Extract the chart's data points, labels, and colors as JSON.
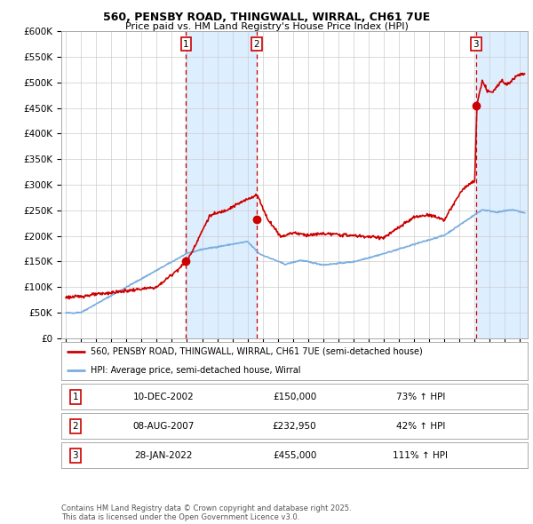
{
  "title1": "560, PENSBY ROAD, THINGWALL, WIRRAL, CH61 7UE",
  "title2": "Price paid vs. HM Land Registry's House Price Index (HPI)",
  "legend_line1": "560, PENSBY ROAD, THINGWALL, WIRRAL, CH61 7UE (semi-detached house)",
  "legend_line2": "HPI: Average price, semi-detached house, Wirral",
  "sale1": {
    "label": "1",
    "date": "10-DEC-2002",
    "date_num": 2002.94,
    "price": 150000,
    "price_str": "£150,000",
    "pct": "73%",
    "dir": "↑"
  },
  "sale2": {
    "label": "2",
    "date": "08-AUG-2007",
    "date_num": 2007.6,
    "price": 232950,
    "price_str": "£232,950",
    "pct": "42%",
    "dir": "↑"
  },
  "sale3": {
    "label": "3",
    "date": "28-JAN-2022",
    "date_num": 2022.08,
    "price": 455000,
    "price_str": "£455,000",
    "pct": "111%",
    "dir": "↑"
  },
  "red_color": "#cc0000",
  "blue_color": "#7aade0",
  "shade_color": "#ddeeff",
  "grid_color": "#cccccc",
  "bg_color": "#ffffff",
  "ylim": [
    0,
    600000
  ],
  "yticks": [
    0,
    50000,
    100000,
    150000,
    200000,
    250000,
    300000,
    350000,
    400000,
    450000,
    500000,
    550000,
    600000
  ],
  "ytick_labels": [
    "£0",
    "£50K",
    "£100K",
    "£150K",
    "£200K",
    "£250K",
    "£300K",
    "£350K",
    "£400K",
    "£450K",
    "£500K",
    "£550K",
    "£600K"
  ],
  "xlim_start": 1994.7,
  "xlim_end": 2025.5,
  "footer": "Contains HM Land Registry data © Crown copyright and database right 2025.\nThis data is licensed under the Open Government Licence v3.0."
}
